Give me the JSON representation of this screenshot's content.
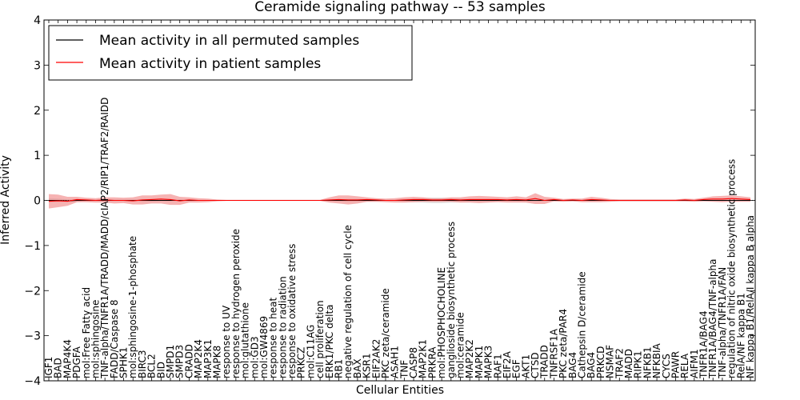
{
  "chart_data": {
    "type": "line",
    "title": "Ceramide signaling pathway -- 53 samples",
    "xlabel": "Cellular Entities",
    "ylabel": "Inferred Activity",
    "ylim": [
      -4,
      4
    ],
    "yticks": [
      -4,
      -3,
      -2,
      -1,
      0,
      1,
      2,
      3,
      4
    ],
    "legend_position": "top-left",
    "categories": [
      "IGF1",
      "BAD",
      "MAP4K4",
      "PDGFA",
      "mol:Free Fatty acid",
      "mol:sphingosine",
      "TNF-alpha/TNFR1A/TRADD/MADD/cIAP2/RIP1/TRAF2/RAIDD",
      "FADD/Caspase 8",
      "SPHK1",
      "mol:sphingosine-1-phosphate",
      "BIRC3",
      "BCL2",
      "BID",
      "SMPD1",
      "SMPD3",
      "CRADD",
      "MAP2K4",
      "MAP3K1",
      "MAPK8",
      "response to UV",
      "response to hydrogen peroxide",
      "mol:glutathione",
      "mol:GD3",
      "mol:GW4869",
      "response to heat",
      "response to radiation",
      "response to oxidative stress",
      "PRKCZ",
      "mol:C11AG",
      "cell proliferation",
      "ERK1/PKC delta",
      "RB1",
      "negative regulation of cell cycle",
      "BAX",
      "KSR1",
      "EIF2AK2",
      "PKC zeta/ceramide",
      "ASAH1",
      "TNF",
      "CASP8",
      "MAP2K1",
      "PRKRA",
      "mol:PHOSPHOCHOLINE",
      "ganglioside biosynthetic process",
      "mol:ceramide",
      "MAP2K2",
      "MAPK1",
      "MAPK3",
      "RAF1",
      "EIF2A",
      "EGF",
      "AKT1",
      "CTSD",
      "TRADD",
      "TNFRSF1A",
      "PKC zeta/PAR4",
      "BAG4",
      "Cathepsin D/ceramide",
      "BAG4",
      "PRKCD",
      "NSMAF",
      "TRAF2",
      "MADD",
      "RIPK1",
      "NFKB1",
      "NFKBIA",
      "CYCS",
      "PAWR",
      "RELA",
      "AIFM1",
      "TNFR1A/BAG4",
      "TNFR1A/BAG4/TNF-alpha",
      "TNF-alpha/TNFR1A/FAN",
      "regulation of nitric oxide biosynthetic process",
      "RelA/NF kappa B1",
      "NF kappa B1/RelA/I kappa B alpha"
    ],
    "series": [
      {
        "name": "Mean activity in all permuted samples",
        "color": "#000000",
        "values": [
          0.0,
          0.0,
          -0.01,
          0.0,
          0.0,
          0.0,
          0.0,
          0.0,
          0.0,
          0.0,
          0.0,
          0.0,
          0.0,
          0.0,
          0.0,
          0.0,
          0.0,
          0.0,
          0.0,
          0.0,
          0.0,
          0.0,
          0.0,
          0.0,
          0.0,
          0.0,
          0.0,
          0.0,
          0.0,
          0.0,
          0.0,
          0.0,
          0.0,
          0.0,
          0.0,
          0.0,
          0.0,
          0.0,
          0.0,
          0.0,
          0.0,
          0.0,
          0.0,
          0.0,
          0.0,
          0.0,
          0.0,
          0.0,
          0.0,
          0.0,
          0.0,
          0.0,
          0.0,
          0.0,
          0.0,
          0.0,
          0.0,
          0.0,
          0.0,
          0.0,
          0.0,
          0.0,
          0.0,
          0.0,
          0.0,
          0.0,
          0.0,
          0.0,
          0.0,
          0.0,
          0.0,
          0.0,
          0.0,
          0.0,
          0.0,
          0.0
        ],
        "band": [
          0.05,
          0.04,
          0.03,
          0.03,
          0.02,
          0.02,
          0.02,
          0.02,
          0.02,
          0.02,
          0.03,
          0.03,
          0.02,
          0.02,
          0.02,
          0.02,
          0.01,
          0.01,
          0.01,
          0.01,
          0.01,
          0.01,
          0.01,
          0.01,
          0.01,
          0.01,
          0.01,
          0.01,
          0.01,
          0.01,
          0.02,
          0.02,
          0.03,
          0.03,
          0.03,
          0.03,
          0.02,
          0.02,
          0.03,
          0.04,
          0.05,
          0.06,
          0.06,
          0.05,
          0.04,
          0.03,
          0.03,
          0.03,
          0.02,
          0.02,
          0.02,
          0.03,
          0.03,
          0.02,
          0.02,
          0.02,
          0.02,
          0.02,
          0.02,
          0.02,
          0.02,
          0.02,
          0.02,
          0.02,
          0.02,
          0.02,
          0.02,
          0.02,
          0.02,
          0.02,
          0.02,
          0.02,
          0.02,
          0.02,
          0.02,
          0.02
        ],
        "band_color": "#c9c9c9"
      },
      {
        "name": "Mean activity in patient samples",
        "color": "#ff0000",
        "values": [
          -0.02,
          -0.01,
          -0.02,
          0.02,
          0.01,
          0.0,
          0.01,
          0.0,
          0.0,
          -0.01,
          0.01,
          0.02,
          0.03,
          0.02,
          -0.01,
          0.01,
          0.0,
          0.0,
          0.0,
          0.0,
          0.0,
          0.0,
          0.0,
          0.0,
          0.0,
          0.0,
          0.0,
          0.0,
          0.0,
          0.0,
          0.01,
          0.02,
          0.01,
          0.01,
          0.02,
          0.01,
          0.0,
          0.0,
          0.01,
          0.02,
          0.02,
          0.01,
          0.01,
          0.02,
          0.01,
          0.02,
          0.02,
          0.02,
          0.02,
          0.01,
          0.02,
          0.01,
          0.04,
          0.0,
          0.02,
          0.0,
          0.01,
          0.0,
          0.02,
          0.01,
          0.0,
          0.0,
          0.0,
          0.0,
          0.0,
          0.0,
          0.0,
          0.0,
          0.01,
          0.0,
          0.02,
          0.03,
          0.03,
          0.04,
          0.03,
          0.02
        ],
        "band": [
          0.16,
          0.14,
          0.1,
          0.06,
          0.05,
          0.05,
          0.06,
          0.07,
          0.06,
          0.08,
          0.1,
          0.09,
          0.1,
          0.12,
          0.09,
          0.06,
          0.05,
          0.04,
          0.02,
          0.01,
          0.01,
          0.01,
          0.01,
          0.01,
          0.01,
          0.01,
          0.01,
          0.01,
          0.01,
          0.01,
          0.06,
          0.09,
          0.1,
          0.08,
          0.05,
          0.04,
          0.04,
          0.05,
          0.06,
          0.06,
          0.05,
          0.04,
          0.04,
          0.05,
          0.06,
          0.07,
          0.08,
          0.07,
          0.06,
          0.06,
          0.07,
          0.06,
          0.12,
          0.08,
          0.04,
          0.03,
          0.03,
          0.04,
          0.06,
          0.05,
          0.03,
          0.02,
          0.02,
          0.02,
          0.02,
          0.02,
          0.02,
          0.02,
          0.03,
          0.03,
          0.04,
          0.06,
          0.07,
          0.07,
          0.06,
          0.05
        ],
        "band_color": "#f08080"
      }
    ]
  }
}
